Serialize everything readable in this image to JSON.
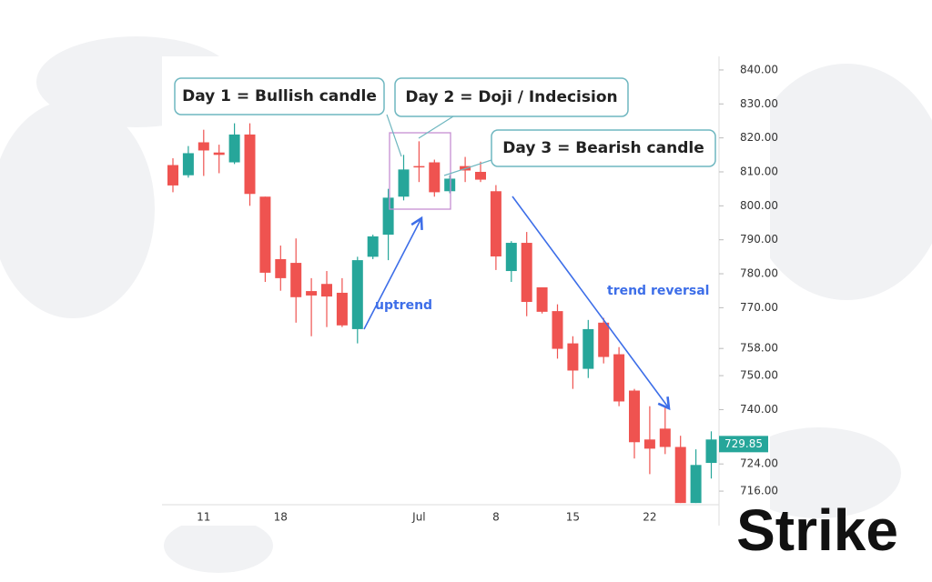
{
  "chart_data": {
    "type": "candlestick",
    "categories": [
      null,
      null,
      "11",
      null,
      null,
      null,
      null,
      "18",
      null,
      null,
      null,
      null,
      null,
      null,
      null,
      null,
      "Jul",
      null,
      null,
      null,
      null,
      "8",
      null,
      null,
      null,
      null,
      "15",
      null,
      null,
      null,
      null,
      "22",
      null,
      null,
      null,
      null
    ],
    "open": [
      812,
      809,
      818.7,
      815.7,
      812.8,
      821,
      802.7,
      784.3,
      783.2,
      774.9,
      777,
      774.4,
      763.7,
      785,
      791.5,
      802.7,
      811.7,
      812.8,
      804.3,
      811.7,
      810,
      804.3,
      780.8,
      789.1,
      776,
      769,
      759.5,
      752,
      765.6,
      756.3,
      745.6,
      731.2,
      734.4,
      729,
      712.5,
      724.3
    ],
    "high": [
      814,
      817.6,
      822.4,
      818,
      824.3,
      824.3,
      802.7,
      788.3,
      790.4,
      778.7,
      780.8,
      778.7,
      785,
      791.5,
      805,
      815,
      819,
      813.6,
      809,
      814.4,
      813,
      806.1,
      789.6,
      792.3,
      776,
      771,
      761.6,
      766.4,
      767,
      758.4,
      746.1,
      741,
      741,
      732.3,
      728.3,
      733.6
    ],
    "low": [
      804,
      808.3,
      808.8,
      809.6,
      812.3,
      800,
      777.6,
      775,
      765.6,
      761.6,
      764.3,
      764.3,
      759.5,
      784.3,
      784,
      801.6,
      807,
      802.7,
      803.7,
      807,
      807,
      781.1,
      777.6,
      767.5,
      768.3,
      755,
      746.1,
      749.3,
      753.6,
      741,
      725.6,
      721,
      726.9,
      712.5,
      712.5,
      719.7
    ],
    "close": [
      806,
      815.5,
      816.3,
      815,
      821,
      803.5,
      780.3,
      778.7,
      773.1,
      773.6,
      773.3,
      764.8,
      784,
      791,
      802.4,
      810.7,
      811.5,
      804,
      808,
      810.4,
      807.7,
      785.1,
      789.1,
      771.7,
      768.8,
      757.9,
      751.5,
      763.7,
      755.5,
      742.4,
      730.4,
      728.5,
      729,
      712.5,
      723.7,
      731.2
    ],
    "up_color": "#26a69a",
    "down_color": "#ef5350",
    "ylim": [
      712,
      844
    ],
    "yticks": [
      {
        "value": 840,
        "label": "840.00"
      },
      {
        "value": 830,
        "label": "830.00"
      },
      {
        "value": 820,
        "label": "820.00"
      },
      {
        "value": 810,
        "label": "810.00"
      },
      {
        "value": 800,
        "label": "800.00"
      },
      {
        "value": 790,
        "label": "790.00"
      },
      {
        "value": 780,
        "label": "780.00"
      },
      {
        "value": 770,
        "label": "770.00"
      },
      {
        "value": 758,
        "label": "758.00"
      },
      {
        "value": 750,
        "label": "750.00"
      },
      {
        "value": 740,
        "label": "740.00"
      },
      {
        "value": 724,
        "label": "724.00"
      },
      {
        "value": 716,
        "label": "716.00"
      }
    ],
    "last_price": 729.85,
    "annotations": [
      "Day 1 = Bullish candle",
      "Day 2 = Doji / Indecision",
      "Day 3 = Bearish candle",
      "uptrend",
      "trend reversal"
    ],
    "brand": "Strike"
  }
}
